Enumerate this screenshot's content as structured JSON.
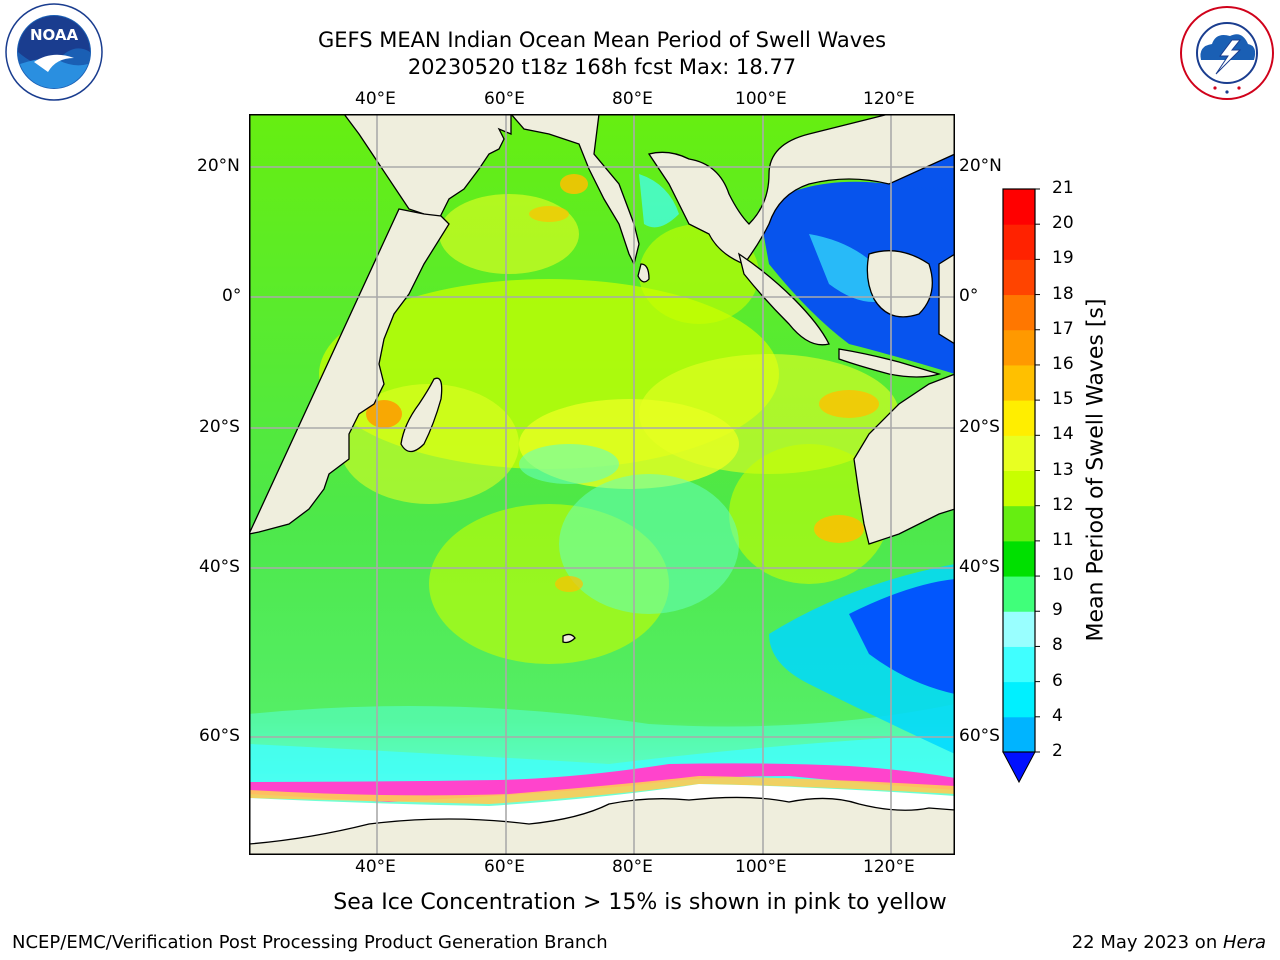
{
  "header": {
    "title_line1": "GEFS MEAN Indian Ocean Mean Period of Swell Waves",
    "title_line2": "20230520 t18z 168h fcst   Max: 18.77"
  },
  "logos": {
    "left": "NOAA",
    "left_ring_text": "NATIONAL OCEANIC AND ATMOSPHERIC ADMINISTRATION · U.S. DEPARTMENT OF COMMERCE",
    "right_ring_text": "NATIONAL WEATHER SERVICE"
  },
  "map": {
    "lon_labels": [
      "40°E",
      "60°E",
      "80°E",
      "100°E",
      "120°E"
    ],
    "lat_labels": [
      "20°N",
      "0°",
      "20°S",
      "40°S",
      "60°S"
    ]
  },
  "colorbar": {
    "title": "Mean Period of Swell Waves [s]",
    "ticks": [
      "2",
      "4",
      "6",
      "8",
      "9",
      "10",
      "11",
      "12",
      "13",
      "14",
      "15",
      "16",
      "17",
      "18",
      "19",
      "20",
      "21"
    ],
    "colors": [
      "#0047ff",
      "#00b4ff",
      "#00f0ff",
      "#40ffff",
      "#99ffff",
      "#40ff7a",
      "#00e000",
      "#66ee11",
      "#c8ff00",
      "#e8ff22",
      "#ffee00",
      "#ffc000",
      "#ff9900",
      "#ff7700",
      "#ff4400",
      "#ff2200",
      "#ff0000"
    ],
    "arrow_color": "#0010ff"
  },
  "caption": "Sea Ice Concentration > 15% is shown in pink to yellow",
  "footer": {
    "left": "NCEP/EMC/Verification Post Processing Product Generation Branch",
    "right_prefix": "22 May 2023 on ",
    "right_italic": "Hera"
  },
  "colors": {
    "land": "#efeedd",
    "ice": "#ff44cc",
    "grid": "#aaaaaa"
  }
}
